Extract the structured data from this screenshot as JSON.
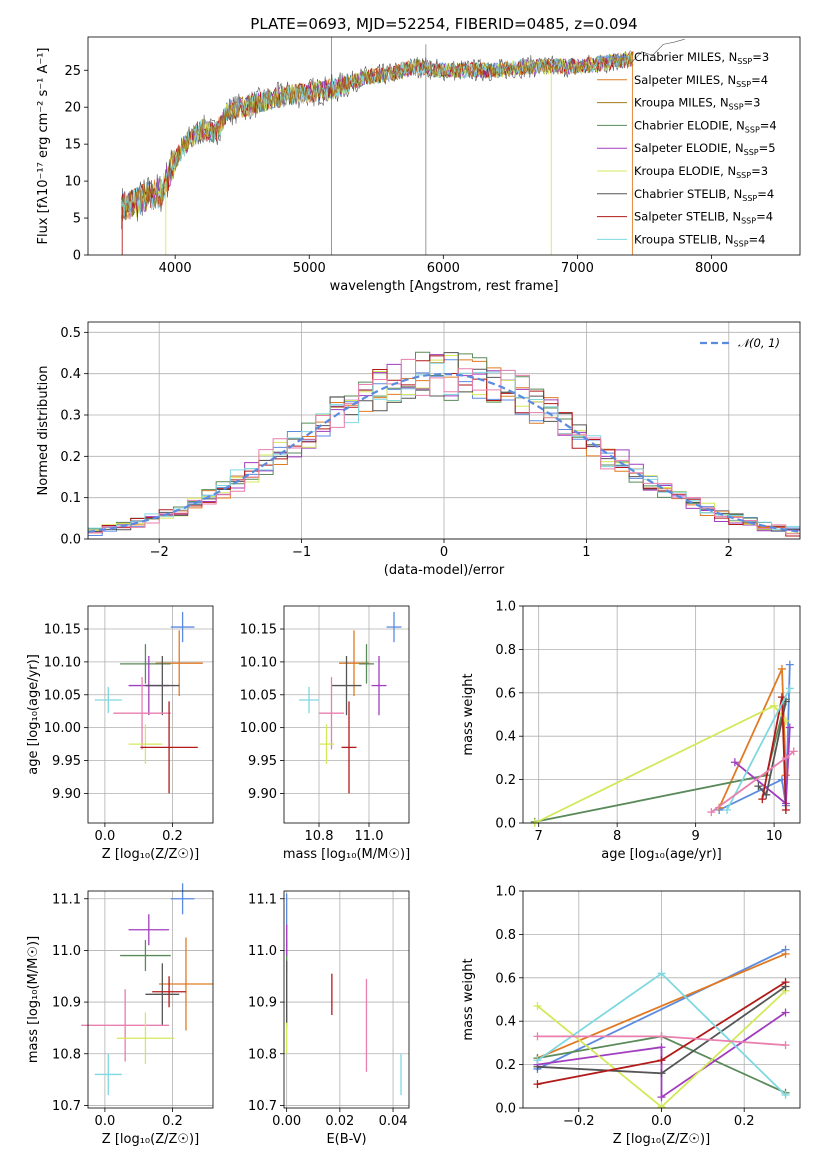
{
  "figure_title": "PLATE=0693, MJD=52254, FIBERID=0485, z=0.094",
  "colors": {
    "Chabrier MILES": "#5b8be0",
    "Salpeter MILES": "#e07b24",
    "Kroupa MILES": "#a07a1a",
    "Chabrier ELODIE": "#5a8a5a",
    "Salpeter ELODIE": "#a13dbf",
    "Kroupa ELODIE": "#d4e85a",
    "Chabrier STELIB": "#555555",
    "Salpeter STELIB": "#b21a1a",
    "Kroupa STELIB": "#7fd8e0",
    "Kroupa STELIB pink": "#e87fae"
  },
  "chart_data": [
    {
      "id": "spectrum",
      "type": "line",
      "title": "PLATE=0693, MJD=52254, FIBERID=0485, z=0.094",
      "xlabel": "wavelength [Angstrom, rest frame]",
      "ylabel": "Flux [f$_\\lambda$10$^{-17}$ erg cm$^{-2}$ s$^{-1}$ A$^{-1}$]",
      "ylabel_display": "Flux [fλ10⁻¹⁷ erg cm⁻² s⁻¹ A⁻¹]",
      "xlim": [
        3350,
        8660
      ],
      "ylim": [
        0,
        29.5
      ],
      "xticks": [
        4000,
        5000,
        6000,
        7000,
        8000
      ],
      "yticks": [
        0,
        5,
        10,
        15,
        20,
        25
      ],
      "grid": false,
      "legend_position": "top-right",
      "legend": [
        {
          "label": "Chabrier MILES, N",
          "sub": "SSP",
          "eq": "=3",
          "color": "#5b8be0"
        },
        {
          "label": "Salpeter MILES, N",
          "sub": "SSP",
          "eq": "=4",
          "color": "#e07b24"
        },
        {
          "label": "Kroupa MILES, N",
          "sub": "SSP",
          "eq": "=3",
          "color": "#a07a1a"
        },
        {
          "label": "Chabrier ELODIE, N",
          "sub": "SSP",
          "eq": "=4",
          "color": "#5a8a5a"
        },
        {
          "label": "Salpeter ELODIE, N",
          "sub": "SSP",
          "eq": "=5",
          "color": "#a13dbf"
        },
        {
          "label": "Kroupa ELODIE, N",
          "sub": "SSP",
          "eq": "=3",
          "color": "#d4e85a"
        },
        {
          "label": "Chabrier STELIB, N",
          "sub": "SSP",
          "eq": "=4",
          "color": "#555555"
        },
        {
          "label": "Salpeter STELIB, N",
          "sub": "SSP",
          "eq": "=4",
          "color": "#b21a1a"
        },
        {
          "label": "Kroupa STELIB, N",
          "sub": "SSP",
          "eq": "=4",
          "color": "#7fd8e0"
        }
      ],
      "flux_envelope": {
        "wavelength": [
          3600,
          3700,
          3800,
          3900,
          4000,
          4100,
          4200,
          4300,
          4400,
          4600,
          4800,
          5000,
          5200,
          5400,
          5600,
          5800,
          6000,
          6200,
          6400,
          6600,
          6800,
          7000,
          7200,
          7400
        ],
        "flux": [
          6.5,
          7.0,
          8.0,
          8.5,
          13.0,
          15.5,
          17.0,
          16.5,
          19.5,
          20.5,
          21.5,
          22.0,
          22.5,
          24.0,
          24.5,
          25.5,
          25.0,
          25.0,
          25.0,
          25.5,
          25.5,
          25.5,
          26.0,
          26.5
        ]
      }
    },
    {
      "id": "residuals",
      "type": "line",
      "xlabel": "(data-model)/error",
      "ylabel": "Normed distribution",
      "xlim": [
        -2.5,
        2.5
      ],
      "ylim": [
        0,
        0.525
      ],
      "xticks": [
        -2,
        -1,
        0,
        1,
        2
      ],
      "yticks": [
        0.0,
        0.1,
        0.2,
        0.3,
        0.4,
        0.5
      ],
      "grid": true,
      "legend_position": "top-right",
      "legend": [
        {
          "label": "𝒩(0, 1)",
          "color": "#5b8be0",
          "style": "dashed"
        }
      ],
      "histogram_bins": [
        -2.5,
        -2.4,
        -2.3,
        -2.2,
        -2.1,
        -2.0,
        -1.9,
        -1.8,
        -1.7,
        -1.6,
        -1.5,
        -1.4,
        -1.3,
        -1.2,
        -1.1,
        -1.0,
        -0.9,
        -0.8,
        -0.7,
        -0.6,
        -0.5,
        -0.4,
        -0.3,
        -0.2,
        -0.1,
        0.0,
        0.1,
        0.2,
        0.3,
        0.4,
        0.5,
        0.6,
        0.7,
        0.8,
        0.9,
        1.0,
        1.1,
        1.2,
        1.3,
        1.4,
        1.5,
        1.6,
        1.7,
        1.8,
        1.9,
        2.0,
        2.1,
        2.2,
        2.3,
        2.4,
        2.5
      ]
    },
    {
      "id": "age_vs_Z",
      "type": "scatter",
      "xlabel": "Z [log₁₀(Z/Z☉)]",
      "ylabel": "age  [log₁₀(age/yr)]",
      "xlim": [
        -0.05,
        0.32
      ],
      "ylim": [
        9.855,
        10.185
      ],
      "xticks": [
        0.0,
        0.2
      ],
      "yticks": [
        9.9,
        9.95,
        10.0,
        10.05,
        10.1,
        10.15
      ],
      "grid": true,
      "points": [
        {
          "x": 0.23,
          "y": 10.153,
          "xerr": 0.035,
          "yerr": 0.023,
          "color": "#5b8be0"
        },
        {
          "x": 0.22,
          "y": 10.098,
          "xerr": 0.07,
          "yerr": 0.05,
          "color": "#e07b24"
        },
        {
          "x": 0.12,
          "y": 10.097,
          "xerr": 0.075,
          "yerr": 0.03,
          "color": "#5a8a5a"
        },
        {
          "x": 0.13,
          "y": 10.064,
          "xerr": 0.06,
          "yerr": 0.045,
          "color": "#a13dbf"
        },
        {
          "x": 0.17,
          "y": 10.064,
          "xerr": 0.05,
          "yerr": 0.045,
          "color": "#555555"
        },
        {
          "x": 0.01,
          "y": 10.042,
          "xerr": 0.04,
          "yerr": 0.02,
          "color": "#7fd8e0"
        },
        {
          "x": 0.11,
          "y": 10.022,
          "xerr": 0.085,
          "yerr": 0.055,
          "color": "#e87fae"
        },
        {
          "x": 0.12,
          "y": 9.975,
          "xerr": 0.05,
          "yerr": 0.03,
          "color": "#d4e85a"
        },
        {
          "x": 0.19,
          "y": 9.97,
          "xerr": 0.085,
          "yerr": 0.07,
          "color": "#b21a1a"
        }
      ]
    },
    {
      "id": "age_vs_mass",
      "type": "scatter",
      "xlabel": "mass [log₁₀(M/M☉)]",
      "ylabel": "",
      "xlim": [
        10.66,
        11.16
      ],
      "ylim": [
        9.855,
        10.185
      ],
      "xticks": [
        10.8,
        11.0
      ],
      "yticks": [
        9.9,
        9.95,
        10.0,
        10.05,
        10.1,
        10.15
      ],
      "grid": true,
      "points": [
        {
          "x": 11.1,
          "y": 10.153,
          "xerr": 0.03,
          "yerr": 0.023,
          "color": "#5b8be0"
        },
        {
          "x": 10.94,
          "y": 10.098,
          "xerr": 0.06,
          "yerr": 0.05,
          "color": "#e07b24"
        },
        {
          "x": 10.99,
          "y": 10.097,
          "xerr": 0.03,
          "yerr": 0.03,
          "color": "#5a8a5a"
        },
        {
          "x": 11.04,
          "y": 10.064,
          "xerr": 0.03,
          "yerr": 0.045,
          "color": "#a13dbf"
        },
        {
          "x": 10.91,
          "y": 10.064,
          "xerr": 0.06,
          "yerr": 0.045,
          "color": "#555555"
        },
        {
          "x": 10.76,
          "y": 10.042,
          "xerr": 0.04,
          "yerr": 0.02,
          "color": "#7fd8e0"
        },
        {
          "x": 10.85,
          "y": 10.022,
          "xerr": 0.05,
          "yerr": 0.055,
          "color": "#e87fae"
        },
        {
          "x": 10.83,
          "y": 9.975,
          "xerr": 0.03,
          "yerr": 0.03,
          "color": "#d4e85a"
        },
        {
          "x": 10.92,
          "y": 9.97,
          "xerr": 0.03,
          "yerr": 0.07,
          "color": "#b21a1a"
        }
      ]
    },
    {
      "id": "mass_weight_vs_age",
      "type": "line",
      "xlabel": "age  [log₁₀(age/yr)]",
      "ylabel": "mass weight",
      "xlim": [
        6.8,
        10.33
      ],
      "ylim": [
        0,
        1.0
      ],
      "xticks": [
        7,
        8,
        9,
        10
      ],
      "yticks": [
        0.0,
        0.2,
        0.4,
        0.6,
        0.8,
        1.0
      ],
      "grid": true,
      "series": [
        {
          "color": "#5b8be0",
          "x": [
            9.3,
            10.1,
            10.15,
            10.2
          ],
          "y": [
            0.06,
            0.2,
            0.08,
            0.73
          ]
        },
        {
          "color": "#e07b24",
          "x": [
            9.3,
            10.1,
            10.15
          ],
          "y": [
            0.07,
            0.71,
            0.22
          ]
        },
        {
          "color": "#5a8a5a",
          "x": [
            6.95,
            9.9,
            10.15
          ],
          "y": [
            0.005,
            0.22,
            0.57
          ]
        },
        {
          "color": "#a13dbf",
          "x": [
            9.5,
            10.15,
            10.2
          ],
          "y": [
            0.28,
            0.09,
            0.44
          ]
        },
        {
          "color": "#d4e85a",
          "x": [
            6.95,
            10.0,
            10.15
          ],
          "y": [
            0.0,
            0.54,
            0.47
          ]
        },
        {
          "color": "#555555",
          "x": [
            9.8,
            9.9,
            10.15
          ],
          "y": [
            0.17,
            0.13,
            0.56
          ]
        },
        {
          "color": "#b21a1a",
          "x": [
            9.85,
            10.1,
            10.15
          ],
          "y": [
            0.11,
            0.58,
            0.06
          ]
        },
        {
          "color": "#7fd8e0",
          "x": [
            9.4,
            10.2
          ],
          "y": [
            0.06,
            0.62
          ]
        },
        {
          "color": "#e87fae",
          "x": [
            9.2,
            10.15,
            10.25
          ],
          "y": [
            0.05,
            0.3,
            0.33
          ]
        }
      ]
    },
    {
      "id": "mass_vs_Z",
      "type": "scatter",
      "xlabel": "Z [log₁₀(Z/Z☉)]",
      "ylabel": "mass [log₁₀(M/M☉)]",
      "xlim": [
        -0.05,
        0.32
      ],
      "ylim": [
        10.695,
        11.115
      ],
      "xticks": [
        0.0,
        0.2
      ],
      "yticks": [
        10.7,
        10.8,
        10.9,
        11.0,
        11.1
      ],
      "grid": true,
      "points": [
        {
          "x": 0.23,
          "y": 11.1,
          "xerr": 0.035,
          "yerr": 0.03,
          "color": "#5b8be0"
        },
        {
          "x": 0.24,
          "y": 10.935,
          "xerr": 0.08,
          "yerr": 0.09,
          "color": "#e07b24"
        },
        {
          "x": 0.12,
          "y": 10.99,
          "xerr": 0.075,
          "yerr": 0.03,
          "color": "#5a8a5a"
        },
        {
          "x": 0.13,
          "y": 11.04,
          "xerr": 0.06,
          "yerr": 0.03,
          "color": "#a13dbf"
        },
        {
          "x": 0.17,
          "y": 10.915,
          "xerr": 0.05,
          "yerr": 0.06,
          "color": "#555555"
        },
        {
          "x": 0.01,
          "y": 10.76,
          "xerr": 0.04,
          "yerr": 0.04,
          "color": "#7fd8e0"
        },
        {
          "x": 0.06,
          "y": 10.855,
          "xerr": 0.13,
          "yerr": 0.07,
          "color": "#e87fae"
        },
        {
          "x": 0.12,
          "y": 10.83,
          "xerr": 0.085,
          "yerr": 0.05,
          "color": "#d4e85a"
        },
        {
          "x": 0.19,
          "y": 10.92,
          "xerr": 0.05,
          "yerr": 0.03,
          "color": "#b21a1a"
        }
      ]
    },
    {
      "id": "mass_vs_EBV",
      "type": "scatter",
      "xlabel": "E(B-V)",
      "ylabel": "",
      "xlim": [
        -0.001,
        0.046
      ],
      "ylim": [
        10.695,
        11.115
      ],
      "xticks": [
        0.0,
        0.02,
        0.04
      ],
      "yticks": [
        10.7,
        10.8,
        10.9,
        11.0,
        11.1
      ],
      "grid": true,
      "points": [
        {
          "x": 0.0,
          "y": 11.07,
          "xerr": 0,
          "yerr": 0.04,
          "color": "#5b8be0"
        },
        {
          "x": 0.0,
          "y": 10.94,
          "xerr": 0,
          "yerr": 0.09,
          "color": "#e07b24"
        },
        {
          "x": 0.0,
          "y": 10.99,
          "xerr": 0,
          "yerr": 0.03,
          "color": "#5a8a5a"
        },
        {
          "x": 0.0,
          "y": 11.02,
          "xerr": 0,
          "yerr": 0.03,
          "color": "#a13dbf"
        },
        {
          "x": 0.0,
          "y": 10.92,
          "xerr": 0,
          "yerr": 0.06,
          "color": "#555555"
        },
        {
          "x": 0.043,
          "y": 10.76,
          "xerr": 0,
          "yerr": 0.04,
          "color": "#7fd8e0"
        },
        {
          "x": 0.03,
          "y": 10.855,
          "xerr": 0,
          "yerr": 0.09,
          "color": "#e87fae"
        },
        {
          "x": 0.0,
          "y": 10.83,
          "xerr": 0,
          "yerr": 0.03,
          "color": "#d4e85a"
        },
        {
          "x": 0.017,
          "y": 10.915,
          "xerr": 0,
          "yerr": 0.04,
          "color": "#b21a1a"
        }
      ]
    },
    {
      "id": "mass_weight_vs_Z",
      "type": "line",
      "xlabel": "Z [log₁₀(Z/Z☉)]",
      "ylabel": "mass weight",
      "xlim": [
        -0.335,
        0.335
      ],
      "ylim": [
        0,
        1.0
      ],
      "xticks": [
        -0.2,
        0.0,
        0.2
      ],
      "yticks": [
        0.0,
        0.2,
        0.4,
        0.6,
        0.8,
        1.0
      ],
      "grid": true,
      "series": [
        {
          "color": "#5b8be0",
          "x": [
            -0.3,
            0.3
          ],
          "y": [
            0.18,
            0.73
          ]
        },
        {
          "color": "#e07b24",
          "x": [
            -0.3,
            0.3
          ],
          "y": [
            0.23,
            0.71
          ]
        },
        {
          "color": "#5a8a5a",
          "x": [
            -0.3,
            0.0,
            0.3
          ],
          "y": [
            0.23,
            0.33,
            0.07
          ]
        },
        {
          "color": "#a13dbf",
          "x": [
            -0.3,
            0.0,
            0.0,
            0.3
          ],
          "y": [
            0.2,
            0.28,
            0.05,
            0.44
          ]
        },
        {
          "color": "#d4e85a",
          "x": [
            -0.3,
            0.0,
            0.3
          ],
          "y": [
            0.47,
            0.005,
            0.54
          ]
        },
        {
          "color": "#555555",
          "x": [
            -0.3,
            0.0,
            0.3
          ],
          "y": [
            0.19,
            0.16,
            0.56
          ]
        },
        {
          "color": "#b21a1a",
          "x": [
            -0.3,
            0.0,
            0.3
          ],
          "y": [
            0.11,
            0.22,
            0.58
          ]
        },
        {
          "color": "#7fd8e0",
          "x": [
            -0.3,
            0.0,
            0.3
          ],
          "y": [
            0.22,
            0.62,
            0.06
          ]
        },
        {
          "color": "#e87fae",
          "x": [
            -0.3,
            0.0,
            0.3
          ],
          "y": [
            0.33,
            0.33,
            0.29
          ]
        }
      ]
    }
  ]
}
